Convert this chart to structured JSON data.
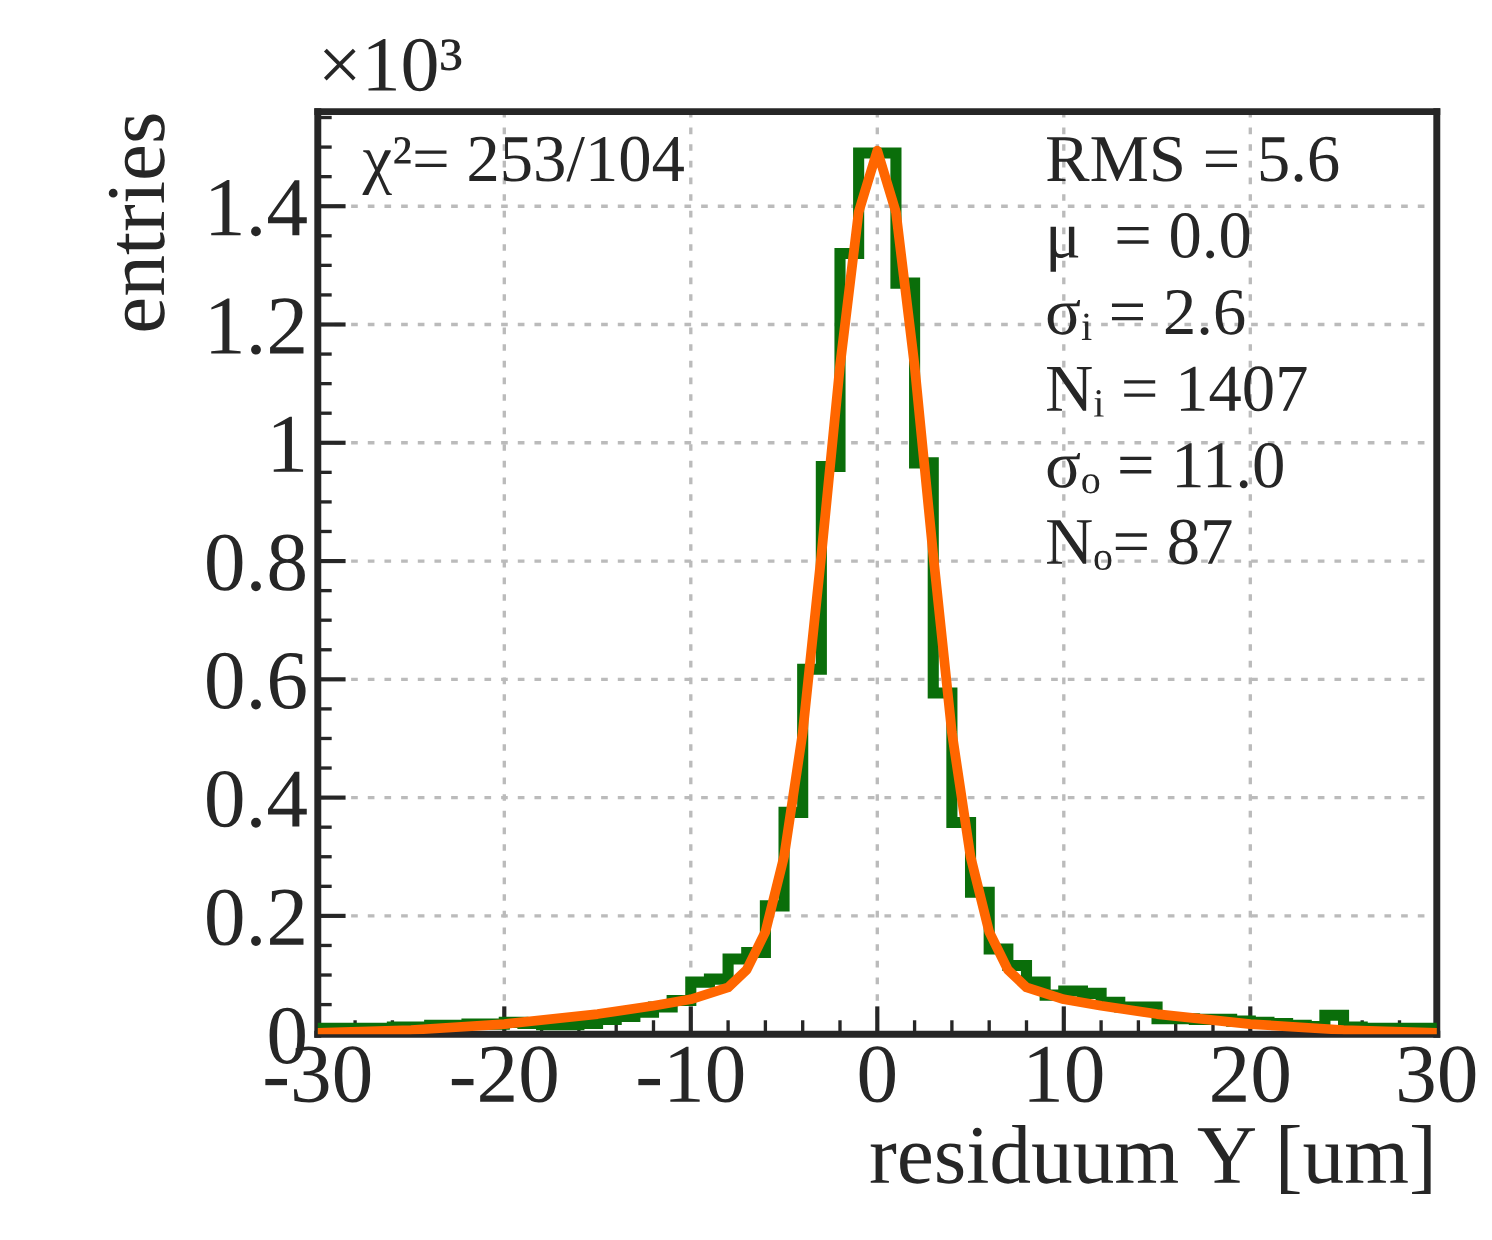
{
  "chart_data": {
    "type": "histogram",
    "xlabel": "residuum Y [um]",
    "ylabel": "entries",
    "annotations": [
      "×10³",
      "χ²= 253/104",
      "RMS = 5.6",
      "μ  = 0.0",
      "σᵢ = 2.6",
      "Nᵢ = 1407",
      "σₒ = 11.0",
      "Nₒ= 87"
    ],
    "series": [
      {
        "color": "#0a6e0a",
        "bins": [
          -30,
          -29,
          -28,
          -27,
          -26,
          -25,
          -24,
          -23,
          -22,
          -21,
          -20,
          -19,
          -18,
          -17,
          -16,
          -15,
          -14,
          -13,
          -12,
          -11,
          -10,
          -9,
          -8,
          -7,
          -6,
          -5,
          -4,
          -3,
          -2,
          -1,
          0,
          1,
          2,
          3,
          4,
          5,
          6,
          7,
          8,
          9,
          10,
          11,
          12,
          13,
          14,
          15,
          16,
          17,
          18,
          19,
          20,
          21,
          22,
          23,
          24,
          25,
          26,
          27,
          28,
          29,
          30
        ],
        "values": [
          0.01,
          0.01,
          0.01,
          0.01,
          0.012,
          0.012,
          0.015,
          0.015,
          0.017,
          0.017,
          0.02,
          0.018,
          0.016,
          0.016,
          0.018,
          0.025,
          0.03,
          0.037,
          0.046,
          0.057,
          0.088,
          0.093,
          0.127,
          0.138,
          0.217,
          0.375,
          0.617,
          0.96,
          1.32,
          1.49,
          1.49,
          1.27,
          0.966,
          0.577,
          0.358,
          0.24,
          0.144,
          0.116,
          0.088,
          0.066,
          0.073,
          0.069,
          0.054,
          0.046,
          0.046,
          0.026,
          0.026,
          0.025,
          0.025,
          0.022,
          0.02,
          0.018,
          0.015,
          0.013,
          0.032,
          0.012,
          0.01,
          0.01,
          0.01,
          0.01
        ]
      },
      {
        "type": "line",
        "color": "#ff6600",
        "x": [
          -30,
          -25,
          -20,
          -15,
          -12,
          -10,
          -8,
          -7,
          -6,
          -5,
          -4,
          -3,
          -2,
          -1,
          0,
          1,
          2,
          3,
          4,
          5,
          6,
          7,
          8,
          10,
          12,
          15,
          20,
          25,
          30
        ],
        "values": [
          0.002,
          0.007,
          0.017,
          0.034,
          0.048,
          0.059,
          0.079,
          0.109,
          0.173,
          0.3,
          0.51,
          0.81,
          1.13,
          1.39,
          1.494,
          1.39,
          1.13,
          0.81,
          0.51,
          0.3,
          0.173,
          0.109,
          0.079,
          0.059,
          0.048,
          0.034,
          0.017,
          0.007,
          0.002
        ]
      }
    ],
    "xlim": [
      -30,
      30
    ],
    "xticks": [
      -30,
      -20,
      -10,
      0,
      10,
      20,
      30
    ],
    "ylim": [
      0,
      1.56
    ],
    "yticks": [
      0,
      0.2,
      0.4,
      0.6,
      0.8,
      {
        "value": 1.0,
        "label": "1"
      },
      1.2,
      1.4
    ],
    "grid": true
  }
}
